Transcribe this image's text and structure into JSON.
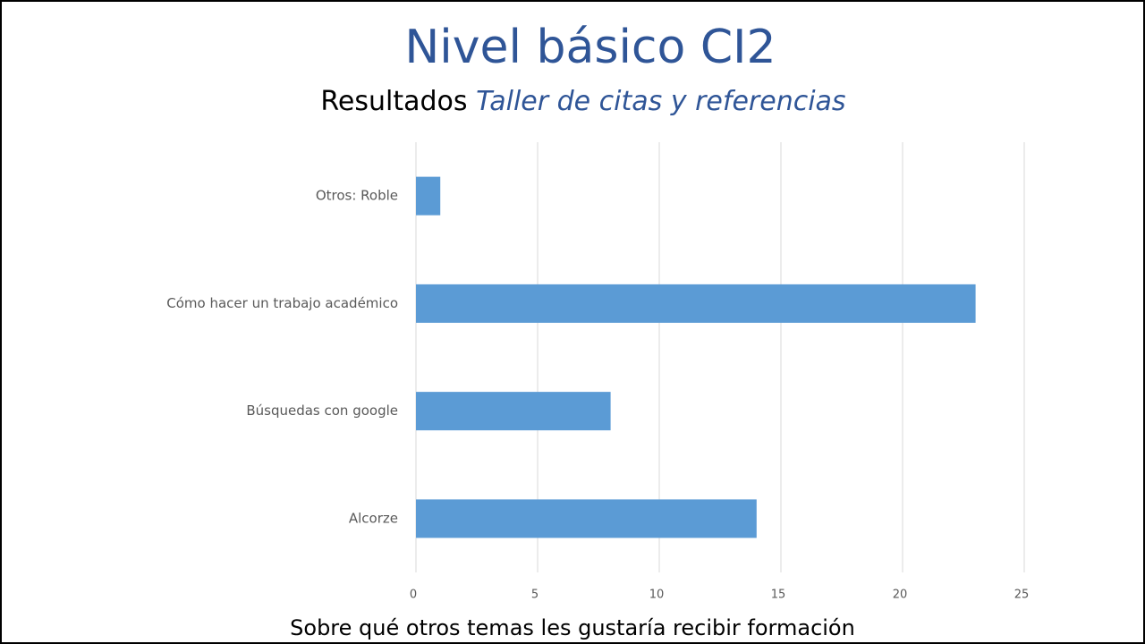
{
  "chart_data": {
    "type": "bar",
    "orientation": "horizontal",
    "title": "Nivel básico CI2",
    "subtitle": {
      "plain": "Resultados",
      "italic": "Taller de citas y referencias"
    },
    "x_label": "Sobre qué otros temas les gustaría recibir formación",
    "categories": [
      "Otros: Roble",
      "Cómo hacer un trabajo académico",
      "Búsquedas con google",
      "Alcorze"
    ],
    "values": [
      1,
      23,
      8,
      14
    ],
    "color": "#5b9bd5",
    "xlim": [
      0,
      25
    ],
    "xticks": [
      0,
      5,
      10,
      15,
      20,
      25
    ],
    "grid": true
  }
}
